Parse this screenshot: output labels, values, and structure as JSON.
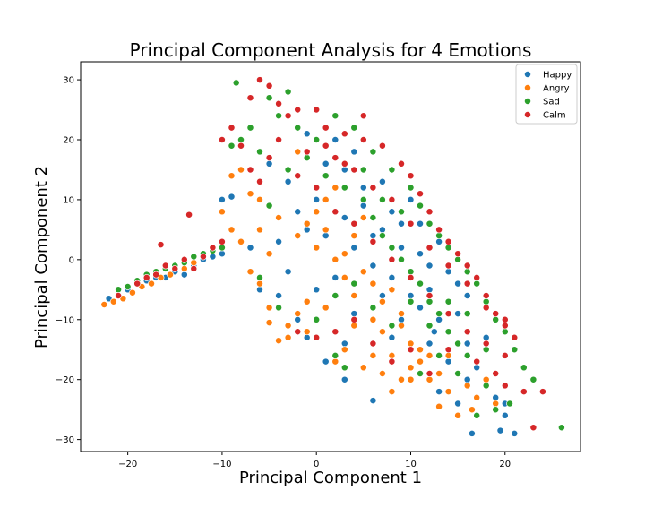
{
  "chart_data": {
    "type": "scatter",
    "title": "Principal Component Analysis for 4 Emotions",
    "xlabel": "Principal Component 1",
    "ylabel": "Principal Component 2",
    "xlim": [
      -25,
      28
    ],
    "ylim": [
      -32,
      33
    ],
    "xticks": [
      -20,
      -10,
      0,
      10,
      20
    ],
    "yticks": [
      -30,
      -20,
      -10,
      0,
      10,
      20,
      30
    ],
    "grid": false,
    "legend_position": "top-right",
    "series": [
      {
        "name": "Happy",
        "color": "#1f77b4",
        "points": [
          [
            -22,
            -6.5
          ],
          [
            -21,
            -6
          ],
          [
            -20,
            -5
          ],
          [
            -19,
            -4
          ],
          [
            -18,
            -3.5
          ],
          [
            -17,
            -3
          ],
          [
            -16,
            -3
          ],
          [
            -15,
            -2
          ],
          [
            -14,
            -2.5
          ],
          [
            -13,
            -1
          ],
          [
            -12,
            0
          ],
          [
            -11,
            0.5
          ],
          [
            -10,
            1
          ],
          [
            -9,
            10.5
          ],
          [
            -10,
            10
          ],
          [
            -5,
            16
          ],
          [
            -3,
            13
          ],
          [
            -2,
            8
          ],
          [
            -1,
            5
          ],
          [
            0,
            10
          ],
          [
            1,
            4
          ],
          [
            2,
            12
          ],
          [
            3,
            7
          ],
          [
            4,
            2
          ],
          [
            5,
            9
          ],
          [
            6,
            -1
          ],
          [
            7,
            5
          ],
          [
            8,
            -3
          ],
          [
            9,
            2
          ],
          [
            10,
            -6
          ],
          [
            11,
            -8
          ],
          [
            12,
            -5
          ],
          [
            13,
            -10
          ],
          [
            14,
            -12
          ],
          [
            15,
            -9
          ],
          [
            16,
            -14
          ],
          [
            12,
            -14
          ],
          [
            14,
            -17
          ],
          [
            17,
            -18
          ],
          [
            13,
            -22
          ],
          [
            18,
            -20
          ],
          [
            19,
            -23
          ],
          [
            20,
            -26
          ],
          [
            21,
            -29
          ],
          [
            22,
            -22
          ],
          [
            20,
            -24
          ],
          [
            1,
            -17
          ],
          [
            3,
            -14
          ],
          [
            6,
            -23.5
          ],
          [
            -2,
            -10
          ],
          [
            -1,
            -13
          ],
          [
            4,
            -9
          ],
          [
            7,
            -6
          ],
          [
            9,
            -10
          ],
          [
            10,
            -3
          ],
          [
            11,
            1
          ],
          [
            12,
            -1
          ],
          [
            15,
            -4
          ],
          [
            16,
            -6
          ],
          [
            18,
            -13
          ],
          [
            3,
            15
          ],
          [
            5,
            12
          ],
          [
            8,
            8
          ],
          [
            9,
            6
          ],
          [
            6,
            4
          ],
          [
            2,
            -3
          ],
          [
            0,
            -5
          ],
          [
            -4,
            3
          ],
          [
            -3,
            -2
          ],
          [
            -6,
            -5
          ],
          [
            -7,
            2
          ],
          [
            -8,
            3
          ],
          [
            -4,
            -6
          ],
          [
            14,
            -2
          ],
          [
            13,
            3
          ],
          [
            11,
            6
          ],
          [
            10,
            10
          ],
          [
            7,
            13
          ],
          [
            4,
            18
          ],
          [
            2,
            20
          ],
          [
            1,
            16
          ],
          [
            -1,
            21
          ],
          [
            16,
            -20
          ],
          [
            16.5,
            -29
          ],
          [
            19.5,
            -28.5
          ],
          [
            12.5,
            -12
          ],
          [
            8,
            -13
          ],
          [
            5,
            -18
          ],
          [
            3,
            -20
          ],
          [
            15,
            -24
          ]
        ]
      },
      {
        "name": "Angry",
        "color": "#ff7f0e",
        "points": [
          [
            -22.5,
            -7.5
          ],
          [
            -21.5,
            -7
          ],
          [
            -20.5,
            -6.5
          ],
          [
            -19.5,
            -5.5
          ],
          [
            -18.5,
            -4.5
          ],
          [
            -17.5,
            -4
          ],
          [
            -16.5,
            -3
          ],
          [
            -15.5,
            -2.5
          ],
          [
            -14,
            -1.5
          ],
          [
            -13,
            -0.5
          ],
          [
            -10,
            8
          ],
          [
            -9,
            5
          ],
          [
            -8,
            3
          ],
          [
            -7,
            -2
          ],
          [
            -6,
            10
          ],
          [
            -5,
            -10.5
          ],
          [
            -4,
            -13.5
          ],
          [
            -3,
            -13
          ],
          [
            -2,
            -9
          ],
          [
            -1,
            -7
          ],
          [
            0,
            2
          ],
          [
            1,
            5
          ],
          [
            2,
            0
          ],
          [
            3,
            -3
          ],
          [
            4,
            -6
          ],
          [
            5,
            -2
          ],
          [
            6,
            -10
          ],
          [
            7,
            -12
          ],
          [
            8,
            -16
          ],
          [
            9,
            -9
          ],
          [
            10,
            -14
          ],
          [
            11,
            -17
          ],
          [
            12,
            -20
          ],
          [
            13,
            -24.5
          ],
          [
            15,
            -26
          ],
          [
            16.5,
            -25
          ],
          [
            17,
            -23
          ],
          [
            18,
            -20
          ],
          [
            19,
            -24
          ],
          [
            14,
            -22
          ],
          [
            -2,
            4
          ],
          [
            -1,
            6
          ],
          [
            0,
            8
          ],
          [
            1,
            10
          ],
          [
            2,
            12
          ],
          [
            3,
            1
          ],
          [
            4,
            4
          ],
          [
            5,
            7
          ],
          [
            6,
            -4
          ],
          [
            7,
            -7
          ],
          [
            8,
            -5
          ],
          [
            9,
            -11
          ],
          [
            10,
            -18
          ],
          [
            11,
            -15
          ],
          [
            -3,
            -11
          ],
          [
            -1,
            -12
          ],
          [
            1,
            -8
          ],
          [
            3,
            -15
          ],
          [
            5,
            -18
          ],
          [
            7,
            -19
          ],
          [
            9,
            -20
          ],
          [
            -5,
            1
          ],
          [
            -4,
            7
          ],
          [
            -6,
            5
          ],
          [
            -7,
            11
          ],
          [
            -8,
            15
          ],
          [
            -9,
            14
          ],
          [
            -3,
            15
          ],
          [
            -2,
            18
          ],
          [
            0,
            12
          ],
          [
            4,
            -11
          ],
          [
            6,
            -16
          ],
          [
            8,
            -22
          ],
          [
            10,
            -20
          ],
          [
            2,
            -17
          ],
          [
            -6,
            -4
          ],
          [
            -5,
            -8
          ],
          [
            12,
            -16
          ],
          [
            13,
            -19
          ],
          [
            14,
            -16
          ],
          [
            16,
            -21
          ]
        ]
      },
      {
        "name": "Sad",
        "color": "#2ca02c",
        "points": [
          [
            -21,
            -5
          ],
          [
            -20,
            -4.5
          ],
          [
            -19,
            -3.5
          ],
          [
            -18,
            -2.5
          ],
          [
            -17,
            -2
          ],
          [
            -16,
            -1.5
          ],
          [
            -15,
            -1
          ],
          [
            -14,
            -0.5
          ],
          [
            -13,
            0.5
          ],
          [
            -12,
            1
          ],
          [
            -11,
            1.5
          ],
          [
            -10,
            2
          ],
          [
            -8.5,
            29.5
          ],
          [
            -5,
            27
          ],
          [
            -3,
            28
          ],
          [
            -4,
            24
          ],
          [
            -2,
            22
          ],
          [
            0,
            20
          ],
          [
            2,
            24
          ],
          [
            4,
            22
          ],
          [
            6,
            18
          ],
          [
            8,
            15
          ],
          [
            10,
            12
          ],
          [
            11,
            9
          ],
          [
            12,
            6
          ],
          [
            13,
            4
          ],
          [
            14,
            2
          ],
          [
            15,
            0
          ],
          [
            16,
            -2
          ],
          [
            17,
            -4
          ],
          [
            18,
            -7
          ],
          [
            19,
            -10
          ],
          [
            20,
            -12
          ],
          [
            21,
            -15
          ],
          [
            22,
            -18
          ],
          [
            23,
            -20
          ],
          [
            20.5,
            -24
          ],
          [
            19,
            -25
          ],
          [
            26,
            -28
          ],
          [
            5,
            10
          ],
          [
            6,
            7
          ],
          [
            7,
            4
          ],
          [
            8,
            2
          ],
          [
            9,
            0
          ],
          [
            10,
            -2
          ],
          [
            11,
            -4
          ],
          [
            12,
            -7
          ],
          [
            13,
            -9
          ],
          [
            14,
            -12
          ],
          [
            15,
            -14
          ],
          [
            16,
            -16
          ],
          [
            3,
            -18
          ],
          [
            2,
            -16
          ],
          [
            11,
            -19
          ],
          [
            18,
            -21
          ],
          [
            17,
            -26
          ],
          [
            -6,
            18
          ],
          [
            -7,
            22
          ],
          [
            -8,
            20
          ],
          [
            -9,
            19
          ],
          [
            -3,
            15
          ],
          [
            -1,
            17
          ],
          [
            1,
            14
          ],
          [
            3,
            12
          ],
          [
            5,
            15
          ],
          [
            7,
            10
          ],
          [
            9,
            8
          ],
          [
            -5,
            9
          ],
          [
            -6,
            -3
          ],
          [
            -4,
            -8
          ],
          [
            0,
            -10
          ],
          [
            2,
            -6
          ],
          [
            4,
            -4
          ],
          [
            6,
            -8
          ],
          [
            8,
            -11
          ],
          [
            10,
            -7
          ],
          [
            12,
            -11
          ],
          [
            14,
            -7
          ],
          [
            16,
            -9
          ],
          [
            18,
            -15
          ],
          [
            15,
            -19
          ],
          [
            13,
            -16
          ]
        ]
      },
      {
        "name": "Calm",
        "color": "#d62728",
        "points": [
          [
            -21,
            -6
          ],
          [
            -19,
            -4
          ],
          [
            -18,
            -3
          ],
          [
            -17,
            -2.5
          ],
          [
            -16,
            -1
          ],
          [
            -15,
            -1.5
          ],
          [
            -14,
            0
          ],
          [
            -13.5,
            7.5
          ],
          [
            -13,
            -1.5
          ],
          [
            -12,
            0.5
          ],
          [
            -11,
            2
          ],
          [
            -10,
            3
          ],
          [
            -16.5,
            2.5
          ],
          [
            -7,
            27
          ],
          [
            -6,
            30
          ],
          [
            -5,
            29
          ],
          [
            -4,
            26
          ],
          [
            -3,
            24
          ],
          [
            -2,
            25
          ],
          [
            0,
            25
          ],
          [
            1,
            22
          ],
          [
            3,
            21
          ],
          [
            5,
            20
          ],
          [
            7,
            19
          ],
          [
            9,
            16
          ],
          [
            10,
            14
          ],
          [
            11,
            11
          ],
          [
            12,
            8
          ],
          [
            13,
            5
          ],
          [
            14,
            3
          ],
          [
            15,
            1
          ],
          [
            16,
            -1
          ],
          [
            17,
            -3
          ],
          [
            18,
            -6
          ],
          [
            19,
            -9
          ],
          [
            20,
            -11
          ],
          [
            21,
            -13
          ],
          [
            20,
            -16
          ],
          [
            19,
            -19
          ],
          [
            20,
            -21
          ],
          [
            22,
            -22
          ],
          [
            23,
            -28
          ],
          [
            24,
            -22
          ],
          [
            2,
            17
          ],
          [
            4,
            15
          ],
          [
            6,
            12
          ],
          [
            8,
            10
          ],
          [
            10,
            6
          ],
          [
            12,
            2
          ],
          [
            14,
            -1
          ],
          [
            16,
            -4
          ],
          [
            18,
            -8
          ],
          [
            20,
            -10
          ],
          [
            -2,
            14
          ],
          [
            0,
            12
          ],
          [
            2,
            8
          ],
          [
            4,
            6
          ],
          [
            6,
            3
          ],
          [
            8,
            0
          ],
          [
            10,
            -3
          ],
          [
            12,
            -6
          ],
          [
            14,
            -9
          ],
          [
            16,
            -12
          ],
          [
            18,
            -14
          ],
          [
            -8,
            19
          ],
          [
            -9,
            22
          ],
          [
            -10,
            20
          ],
          [
            -7,
            15
          ],
          [
            -5,
            17
          ],
          [
            -6,
            13
          ],
          [
            -4,
            20
          ],
          [
            -1,
            18
          ],
          [
            1,
            19
          ],
          [
            3,
            16
          ],
          [
            5,
            24
          ],
          [
            -2,
            -12
          ],
          [
            0,
            -13
          ],
          [
            2,
            -12
          ],
          [
            4,
            -10
          ],
          [
            6,
            -14
          ],
          [
            8,
            -17
          ],
          [
            10,
            -15
          ],
          [
            12,
            -19
          ],
          [
            14,
            -15
          ],
          [
            17,
            -17
          ]
        ]
      }
    ]
  }
}
